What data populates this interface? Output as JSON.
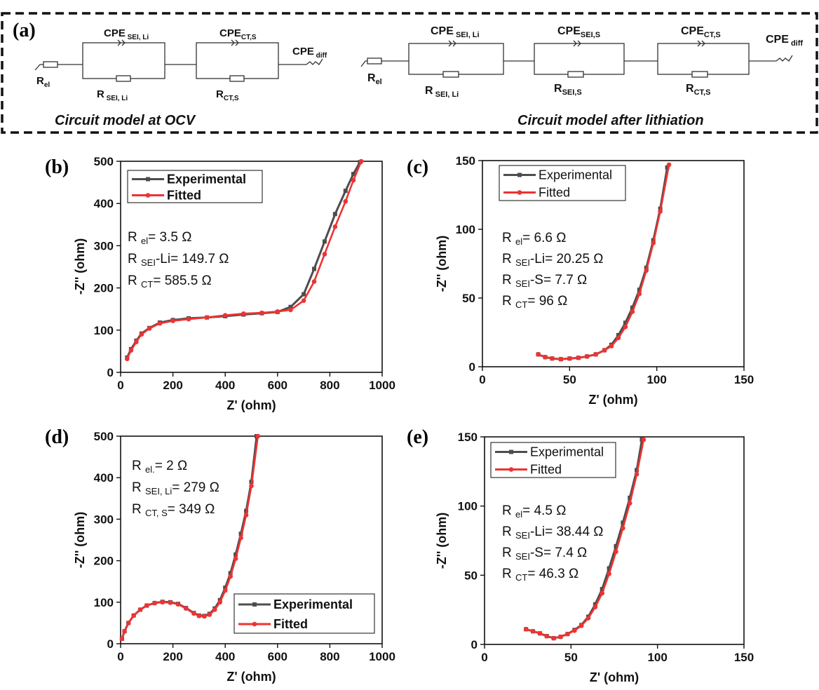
{
  "panel_a": {
    "label": "(a)",
    "ocv_caption": "Circuit model at OCV",
    "lith_caption": "Circuit model after lithiation",
    "ocv": {
      "r_el": [
        "R",
        "el"
      ],
      "cpe_sei_li": [
        "CPE",
        " SEI, Li"
      ],
      "r_sei_li": [
        "R",
        " SEI, Li"
      ],
      "cpe_ct_s": [
        "CPE",
        "CT,S"
      ],
      "r_ct_s": [
        "R",
        "CT,S"
      ],
      "cpe_diff": [
        "CPE",
        " diff"
      ]
    },
    "lith": {
      "r_el": [
        "R",
        "el"
      ],
      "cpe_sei_li": [
        "CPE",
        " SEI, Li"
      ],
      "r_sei_li": [
        "R",
        " SEI, Li"
      ],
      "cpe_sei_s": [
        "CPE",
        "SEI,S"
      ],
      "r_sei_s": [
        "R",
        "SEI,S"
      ],
      "cpe_ct_s": [
        "CPE",
        "CT,S"
      ],
      "r_ct_s": [
        "R",
        "CT,S"
      ],
      "cpe_diff": [
        "CPE",
        " diff"
      ]
    }
  },
  "colors": {
    "experimental": "#4d4d4d",
    "fitted": "#ee3333"
  },
  "chart_data": [
    {
      "id": "b",
      "panel_label": "(b)",
      "type": "line",
      "xlabel": "Z' (ohm)",
      "ylabel": "-Z'' (ohm)",
      "xlim": [
        0,
        1000
      ],
      "ylim": [
        0,
        500
      ],
      "xticks": [
        0,
        200,
        400,
        600,
        800,
        1000
      ],
      "yticks": [
        0,
        100,
        200,
        300,
        400,
        500
      ],
      "legend_position": "top-left",
      "legend_bold": true,
      "annotations": [
        [
          {
            "t": "R "
          },
          {
            "t": "el",
            "sub": true
          },
          {
            "t": "= 3.5 Ω"
          }
        ],
        [
          {
            "t": "R "
          },
          {
            "t": "SEI",
            "sub": true
          },
          {
            "t": "-Li= 149.7 Ω"
          }
        ],
        [
          {
            "t": "R "
          },
          {
            "t": "CT",
            "sub": true
          },
          {
            "t": "= 585.5 Ω"
          }
        ]
      ],
      "series": [
        {
          "name": "Experimental",
          "x": [
            25,
            40,
            60,
            80,
            110,
            150,
            200,
            260,
            330,
            400,
            470,
            540,
            600,
            650,
            700,
            740,
            780,
            820,
            860,
            890,
            915
          ],
          "y": [
            35,
            55,
            75,
            92,
            105,
            118,
            124,
            128,
            130,
            133,
            137,
            140,
            143,
            155,
            185,
            245,
            310,
            375,
            430,
            470,
            498
          ]
        },
        {
          "name": "Fitted",
          "x": [
            25,
            40,
            60,
            80,
            110,
            150,
            200,
            260,
            330,
            400,
            470,
            540,
            600,
            650,
            700,
            740,
            780,
            820,
            860,
            890,
            920
          ],
          "y": [
            32,
            52,
            72,
            90,
            104,
            116,
            122,
            126,
            130,
            135,
            139,
            141,
            144,
            148,
            170,
            215,
            280,
            345,
            405,
            455,
            500
          ]
        }
      ]
    },
    {
      "id": "c",
      "panel_label": "(c)",
      "type": "line",
      "xlabel": "Z' (ohm)",
      "ylabel": "-Z'' (ohm)",
      "xlim": [
        0,
        150
      ],
      "ylim": [
        0,
        150
      ],
      "xticks": [
        0,
        50,
        100,
        150
      ],
      "yticks": [
        0,
        50,
        100,
        150
      ],
      "legend_position": "top-left",
      "legend_bold": false,
      "annotations": [
        [
          {
            "t": "R "
          },
          {
            "t": "el",
            "sub": true
          },
          {
            "t": "= 6.6 Ω"
          }
        ],
        [
          {
            "t": "R "
          },
          {
            "t": "SEI",
            "sub": true
          },
          {
            "t": "-Li= 20.25 Ω"
          }
        ],
        [
          {
            "t": "R "
          },
          {
            "t": "SEI",
            "sub": true
          },
          {
            "t": "-S= 7.7 Ω"
          }
        ],
        [
          {
            "t": "R "
          },
          {
            "t": "CT",
            "sub": true
          },
          {
            "t": "= 96 Ω"
          }
        ]
      ],
      "series": [
        {
          "name": "Experimental",
          "x": [
            32,
            36,
            40,
            45,
            50,
            55,
            60,
            65,
            70,
            74,
            78,
            82,
            86,
            90,
            94,
            98,
            102,
            106
          ],
          "y": [
            9,
            7,
            6,
            5.5,
            6,
            6.5,
            7.5,
            9,
            12,
            16,
            23,
            32,
            43,
            56,
            72,
            92,
            115,
            145
          ]
        },
        {
          "name": "Fitted",
          "x": [
            32,
            36,
            40,
            45,
            50,
            55,
            60,
            65,
            70,
            74,
            78,
            82,
            86,
            90,
            94,
            98,
            102,
            107
          ],
          "y": [
            9,
            7,
            6,
            5.5,
            6,
            6.5,
            7.5,
            9,
            12,
            15,
            21,
            29,
            40,
            53,
            70,
            90,
            113,
            147
          ]
        }
      ]
    },
    {
      "id": "d",
      "panel_label": "(d)",
      "type": "line",
      "xlabel": "Z' (ohm)",
      "ylabel": "-Z'' (ohm)",
      "xlim": [
        0,
        1000
      ],
      "ylim": [
        0,
        500
      ],
      "xticks": [
        0,
        200,
        400,
        600,
        800,
        1000
      ],
      "yticks": [
        0,
        100,
        200,
        300,
        400,
        500
      ],
      "legend_position": "bottom-right",
      "legend_bold": true,
      "annotations": [
        [
          {
            "t": "R "
          },
          {
            "t": "el.",
            "sub": true
          },
          {
            "t": "= 2 Ω"
          }
        ],
        [
          {
            "t": "R "
          },
          {
            "t": "SEI, Li",
            "sub": true
          },
          {
            "t": "= 279 Ω"
          }
        ],
        [
          {
            "t": "R "
          },
          {
            "t": "CT, S",
            "sub": true
          },
          {
            "t": "= 349 Ω"
          }
        ]
      ],
      "series": [
        {
          "name": "Experimental",
          "x": [
            5,
            15,
            30,
            50,
            75,
            100,
            130,
            160,
            190,
            220,
            250,
            280,
            300,
            320,
            340,
            360,
            380,
            400,
            420,
            440,
            460,
            480,
            500,
            520
          ],
          "y": [
            12,
            30,
            50,
            68,
            82,
            92,
            98,
            101,
            100,
            96,
            86,
            74,
            68,
            67,
            72,
            85,
            105,
            135,
            170,
            215,
            265,
            320,
            390,
            500
          ]
        },
        {
          "name": "Fitted",
          "x": [
            5,
            15,
            30,
            50,
            75,
            100,
            130,
            160,
            190,
            220,
            250,
            280,
            300,
            320,
            340,
            360,
            380,
            400,
            420,
            440,
            460,
            480,
            500,
            525
          ],
          "y": [
            12,
            30,
            50,
            68,
            82,
            92,
            98,
            100,
            99,
            95,
            85,
            73,
            67,
            66,
            70,
            82,
            100,
            128,
            162,
            205,
            255,
            310,
            380,
            500
          ]
        }
      ]
    },
    {
      "id": "e",
      "panel_label": "(e)",
      "type": "line",
      "xlabel": "Z' (ohm)",
      "ylabel": "-Z'' (ohm)",
      "xlim": [
        0,
        150
      ],
      "ylim": [
        0,
        150
      ],
      "xticks": [
        0,
        50,
        100,
        150
      ],
      "yticks": [
        0,
        50,
        100,
        150
      ],
      "legend_position": "top-left",
      "legend_bold": false,
      "annotations": [
        [
          {
            "t": "R "
          },
          {
            "t": "el",
            "sub": true
          },
          {
            "t": "= 4.5 Ω"
          }
        ],
        [
          {
            "t": "R "
          },
          {
            "t": "SEI",
            "sub": true
          },
          {
            "t": "-Li= 38.44 Ω"
          }
        ],
        [
          {
            "t": "R "
          },
          {
            "t": "SEI",
            "sub": true
          },
          {
            "t": "-S= 7.4 Ω"
          }
        ],
        [
          {
            "t": "R "
          },
          {
            "t": "CT",
            "sub": true
          },
          {
            "t": "= 46.3 Ω"
          }
        ]
      ],
      "series": [
        {
          "name": "Experimental",
          "x": [
            24,
            28,
            32,
            36,
            40,
            44,
            48,
            52,
            56,
            60,
            64,
            68,
            72,
            76,
            80,
            84,
            88,
            91
          ],
          "y": [
            11,
            9.5,
            8,
            6,
            4.5,
            5.5,
            7.5,
            10.5,
            14,
            20,
            29,
            40,
            55,
            71,
            88,
            106,
            126,
            148
          ]
        },
        {
          "name": "Fitted",
          "x": [
            24,
            28,
            32,
            36,
            40,
            44,
            48,
            52,
            56,
            60,
            64,
            68,
            72,
            76,
            80,
            84,
            88,
            92
          ],
          "y": [
            11,
            9.5,
            8,
            6,
            4.5,
            5.5,
            7.5,
            10,
            13.5,
            19,
            27,
            37,
            51,
            67,
            84,
            102,
            123,
            148
          ]
        }
      ]
    }
  ]
}
